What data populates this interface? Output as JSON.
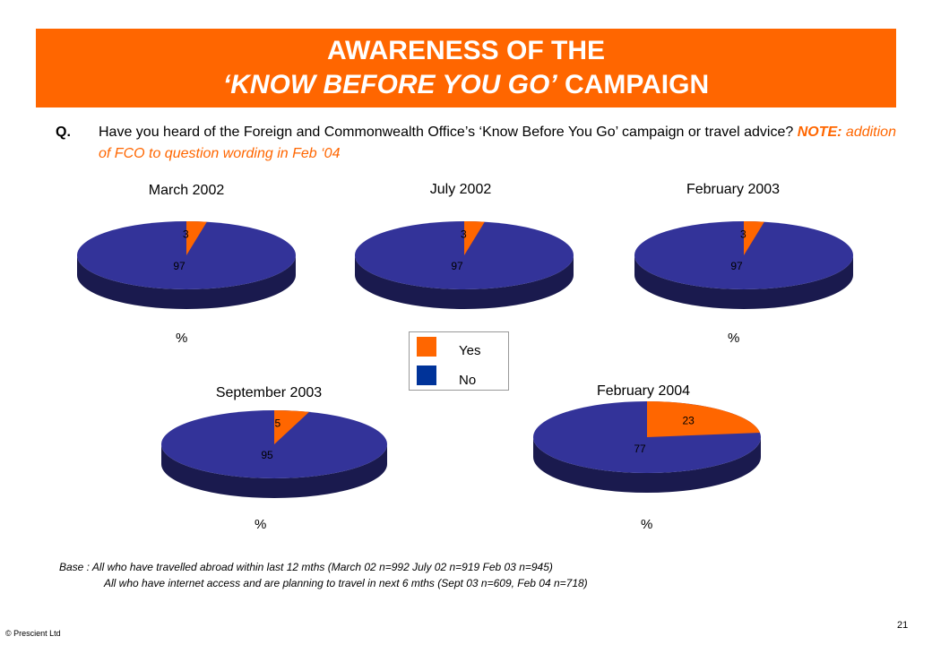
{
  "header": {
    "title_line1": "AWARENESS OF THE",
    "title_line2_italic": "‘KNOW BEFORE YOU GO’",
    "title_line2_rest": " CAMPAIGN"
  },
  "question": {
    "label": "Q.",
    "text": "Have you heard of the Foreign and Commonwealth Office’s ‘Know Before You Go’ campaign or travel advice? ",
    "note_label": "NOTE:",
    "note": " addition of FCO to question wording in Feb ‘04"
  },
  "legend": {
    "yes_label": "Yes",
    "no_label": "No",
    "yes_color": "#ff6600",
    "no_color": "#003399"
  },
  "pct_symbol": "%",
  "chart_data": [
    {
      "type": "pie",
      "title": "March 2002",
      "labels": [
        "Yes",
        "No"
      ],
      "values": [
        3,
        97
      ]
    },
    {
      "type": "pie",
      "title": "July 2002",
      "labels": [
        "Yes",
        "No"
      ],
      "values": [
        3,
        97
      ]
    },
    {
      "type": "pie",
      "title": "February 2003",
      "labels": [
        "Yes",
        "No"
      ],
      "values": [
        3,
        97
      ]
    },
    {
      "type": "pie",
      "title": "September 2003",
      "labels": [
        "Yes",
        "No"
      ],
      "values": [
        5,
        95
      ]
    },
    {
      "type": "pie",
      "title": "February 2004",
      "labels": [
        "Yes",
        "No"
      ],
      "values": [
        23,
        77
      ]
    }
  ],
  "base": {
    "line1": "Base : All who have travelled abroad within last 12 mths (March 02 n=992 July 02 n=919 Feb 03 n=945)",
    "line2": "All who have internet access and are planning to travel in next 6 mths (Sept 03 n=609, Feb 04 n=718)"
  },
  "footer": {
    "copyright": "© Prescient Ltd",
    "page_number": "21"
  }
}
